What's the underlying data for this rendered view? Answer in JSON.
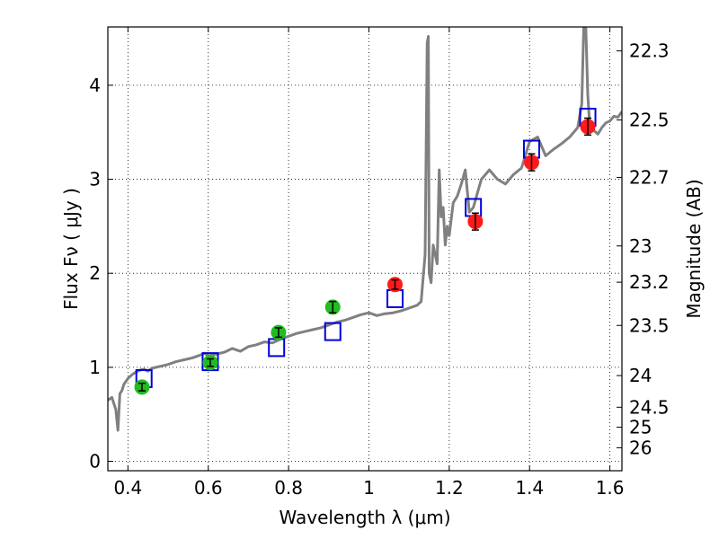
{
  "chart_data": {
    "type": "scatter",
    "xlabel": "Wavelength  λ (μm)",
    "ylabel": "Flux  Fν  ( μJy )",
    "y2label": "Magnitude (AB)",
    "xlim": [
      0.35,
      1.63
    ],
    "ylim": [
      -0.1,
      4.62
    ],
    "grid": true,
    "x_ticks": [
      "0.4",
      "0.6",
      "0.8",
      "1",
      "1.2",
      "1.4",
      "1.6"
    ],
    "y_ticks": [
      "0",
      "1",
      "2",
      "3",
      "4"
    ],
    "mag_ticks": [
      "22.3",
      "22.5",
      "22.7",
      "23",
      "23.2",
      "23.5",
      "24",
      "24.5",
      "25",
      "26"
    ],
    "model_spectrum": {
      "color": "#808080",
      "x": [
        0.35,
        0.36,
        0.37,
        0.375,
        0.38,
        0.385,
        0.39,
        0.4,
        0.41,
        0.42,
        0.43,
        0.44,
        0.45,
        0.46,
        0.47,
        0.48,
        0.49,
        0.5,
        0.52,
        0.54,
        0.56,
        0.58,
        0.59,
        0.6,
        0.62,
        0.64,
        0.66,
        0.68,
        0.7,
        0.72,
        0.74,
        0.76,
        0.78,
        0.8,
        0.82,
        0.84,
        0.86,
        0.88,
        0.9,
        0.92,
        0.94,
        0.96,
        0.98,
        1.0,
        1.02,
        1.04,
        1.06,
        1.08,
        1.1,
        1.12,
        1.13,
        1.14,
        1.145,
        1.148,
        1.15,
        1.155,
        1.16,
        1.17,
        1.175,
        1.18,
        1.185,
        1.19,
        1.195,
        1.2,
        1.21,
        1.22,
        1.23,
        1.24,
        1.25,
        1.26,
        1.27,
        1.28,
        1.3,
        1.32,
        1.34,
        1.36,
        1.38,
        1.4,
        1.42,
        1.44,
        1.46,
        1.48,
        1.5,
        1.52,
        1.53,
        1.535,
        1.54,
        1.545,
        1.55,
        1.56,
        1.57,
        1.58,
        1.59,
        1.6,
        1.61,
        1.62,
        1.63
      ],
      "y": [
        0.65,
        0.68,
        0.55,
        0.33,
        0.72,
        0.75,
        0.82,
        0.88,
        0.92,
        0.95,
        0.97,
        0.98,
        0.96,
        0.99,
        1.0,
        1.01,
        1.02,
        1.03,
        1.06,
        1.08,
        1.1,
        1.13,
        1.15,
        1.12,
        1.14,
        1.16,
        1.2,
        1.17,
        1.22,
        1.24,
        1.27,
        1.26,
        1.3,
        1.33,
        1.36,
        1.38,
        1.4,
        1.42,
        1.45,
        1.48,
        1.5,
        1.53,
        1.56,
        1.58,
        1.55,
        1.57,
        1.58,
        1.6,
        1.63,
        1.66,
        1.7,
        2.2,
        4.45,
        4.52,
        2.0,
        1.9,
        2.3,
        2.1,
        3.1,
        2.6,
        2.7,
        2.3,
        2.5,
        2.4,
        2.75,
        2.82,
        2.95,
        3.1,
        2.65,
        2.7,
        2.85,
        3.0,
        3.1,
        3.0,
        2.95,
        3.05,
        3.12,
        3.4,
        3.45,
        3.25,
        3.32,
        3.38,
        3.45,
        3.55,
        3.8,
        4.62,
        4.62,
        3.9,
        3.55,
        3.52,
        3.48,
        3.55,
        3.6,
        3.62,
        3.67,
        3.66,
        3.72
      ]
    },
    "model_photometry": {
      "color": "#0000dd",
      "x": [
        0.44,
        0.605,
        0.77,
        0.91,
        1.065,
        1.26,
        1.405,
        1.545
      ],
      "y": [
        0.88,
        1.06,
        1.21,
        1.38,
        1.73,
        2.7,
        3.32,
        3.66
      ]
    },
    "observed_optical": {
      "color": "#22bb22",
      "x": [
        0.435,
        0.605,
        0.775,
        0.91
      ],
      "y": [
        0.79,
        1.05,
        1.37,
        1.64
      ],
      "err": [
        0.04,
        0.04,
        0.05,
        0.06
      ]
    },
    "observed_nir": {
      "color": "#ff1a1a",
      "x": [
        1.065,
        1.265,
        1.405,
        1.545
      ],
      "y": [
        1.88,
        2.55,
        3.18,
        3.56
      ],
      "err": [
        0.05,
        0.09,
        0.09,
        0.09
      ]
    }
  }
}
